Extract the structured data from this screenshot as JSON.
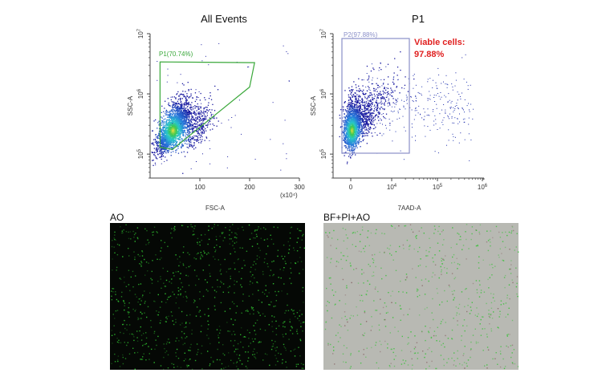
{
  "colors": {
    "gate_p1": "#3aa83a",
    "gate_p2": "#8a8fc8",
    "annotation": "#e02020",
    "density_low": "#1a1aa0",
    "density_high": "#f0e040",
    "ao_background": "#050805",
    "ao_cells": "#2fbf2f",
    "bf_background": "#b8b9b3"
  },
  "chart_data": [
    {
      "type": "scatter",
      "title": "All Events",
      "xlabel": "FSC-A",
      "ylabel": "SSC-A",
      "x_scale": "linear",
      "y_scale": "log",
      "xlim": [
        0,
        300
      ],
      "ylim": [
        40000,
        10000000
      ],
      "x_ticks": [
        "100",
        "200",
        "300"
      ],
      "x_multiplier": "(x10⁴)",
      "y_ticks": [
        {
          "base": "10",
          "exp": "5",
          "value": 100000
        },
        {
          "base": "10",
          "exp": "6",
          "value": 1000000
        },
        {
          "base": "10",
          "exp": "7",
          "value": 10000000
        }
      ],
      "gate": {
        "name": "P1(70.74%)",
        "polygon": [
          [
            20,
            3400000
          ],
          [
            210,
            3300000
          ],
          [
            200,
            1300000
          ],
          [
            45,
            120000
          ],
          [
            20,
            130000
          ]
        ]
      },
      "population": {
        "center": [
          45,
          250000
        ],
        "note": "dense cluster of events"
      }
    },
    {
      "type": "scatter",
      "title": "P1",
      "xlabel": "7AAD-A",
      "ylabel": "SSC-A",
      "x_scale": "log",
      "y_scale": "log",
      "y_ticks": [
        {
          "base": "10",
          "exp": "5",
          "value": 100000
        },
        {
          "base": "10",
          "exp": "6",
          "value": 1000000
        },
        {
          "base": "10",
          "exp": "7",
          "value": 10000000
        }
      ],
      "x_ticks": [
        {
          "text": "0"
        },
        {
          "base": "10",
          "exp": "4"
        },
        {
          "base": "10",
          "exp": "5"
        },
        {
          "base": "10",
          "exp": "6"
        }
      ],
      "gate": {
        "name": "P2(97.88%)"
      },
      "annotation": [
        "Viable cells:",
        "97.88%"
      ]
    }
  ],
  "images": [
    {
      "title": "AO",
      "description_kind": "fluorescence"
    },
    {
      "title": "BF+PI+AO",
      "description_kind": "brightfield-overlay"
    }
  ]
}
